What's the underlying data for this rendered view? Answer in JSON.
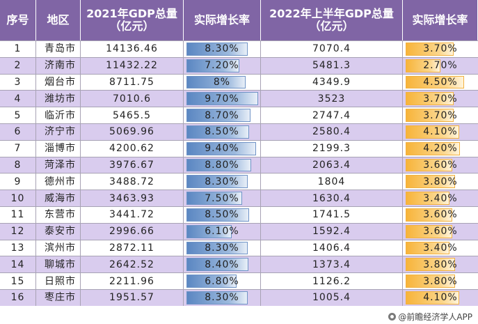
{
  "colors": {
    "header_bg": "#8065a5",
    "row_light": "#ffffff",
    "row_shade": "#d9ccee",
    "bar_blue": "#5b87c2",
    "bar_orange": "#f7b43a"
  },
  "headers": {
    "rank": "序号",
    "region": "地区",
    "gdp_2021": "2021年GDP总量\n（亿元）",
    "growth_2021": "实际增长率",
    "gdp_2022h1": "2022年上半年GDP总量\n（亿元）",
    "growth_2022h1": "实际增长率"
  },
  "rows": [
    {
      "rank": "1",
      "region": "青岛市",
      "gdp_2021": "14136.46",
      "growth_2021": "8.30%",
      "g21": 8.3,
      "gdp_2022h1": "7070.4",
      "growth_2022h1": "3.70%",
      "g22": 3.7
    },
    {
      "rank": "2",
      "region": "济南市",
      "gdp_2021": "11432.22",
      "growth_2021": "7.20%",
      "g21": 7.2,
      "gdp_2022h1": "5481.3",
      "growth_2022h1": "2.70%",
      "g22": 2.7
    },
    {
      "rank": "3",
      "region": "烟台市",
      "gdp_2021": "8711.75",
      "growth_2021": "8%",
      "g21": 8.0,
      "gdp_2022h1": "4349.9",
      "growth_2022h1": "4.50%",
      "g22": 4.5
    },
    {
      "rank": "4",
      "region": "潍坊市",
      "gdp_2021": "7010.6",
      "growth_2021": "9.70%",
      "g21": 9.7,
      "gdp_2022h1": "3523",
      "growth_2022h1": "3.70%",
      "g22": 3.7
    },
    {
      "rank": "5",
      "region": "临沂市",
      "gdp_2021": "5465.5",
      "growth_2021": "8.70%",
      "g21": 8.7,
      "gdp_2022h1": "2747.4",
      "growth_2022h1": "3.70%",
      "g22": 3.7
    },
    {
      "rank": "6",
      "region": "济宁市",
      "gdp_2021": "5069.96",
      "growth_2021": "8.50%",
      "g21": 8.5,
      "gdp_2022h1": "2580.4",
      "growth_2022h1": "4.10%",
      "g22": 4.1
    },
    {
      "rank": "7",
      "region": "淄博市",
      "gdp_2021": "4200.62",
      "growth_2021": "9.40%",
      "g21": 9.4,
      "gdp_2022h1": "2199.3",
      "growth_2022h1": "4.20%",
      "g22": 4.2
    },
    {
      "rank": "8",
      "region": "菏泽市",
      "gdp_2021": "3976.67",
      "growth_2021": "8.80%",
      "g21": 8.8,
      "gdp_2022h1": "2063.4",
      "growth_2022h1": "3.60%",
      "g22": 3.6
    },
    {
      "rank": "9",
      "region": "德州市",
      "gdp_2021": "3488.72",
      "growth_2021": "8.30%",
      "g21": 8.3,
      "gdp_2022h1": "1804",
      "growth_2022h1": "3.80%",
      "g22": 3.8
    },
    {
      "rank": "10",
      "region": "威海市",
      "gdp_2021": "3463.93",
      "growth_2021": "7.50%",
      "g21": 7.5,
      "gdp_2022h1": "1630.4",
      "growth_2022h1": "3.40%",
      "g22": 3.4
    },
    {
      "rank": "11",
      "region": "东营市",
      "gdp_2021": "3441.72",
      "growth_2021": "8.50%",
      "g21": 8.5,
      "gdp_2022h1": "1741.5",
      "growth_2022h1": "3.60%",
      "g22": 3.6
    },
    {
      "rank": "12",
      "region": "泰安市",
      "gdp_2021": "2996.66",
      "growth_2021": "6.10%",
      "g21": 6.1,
      "gdp_2022h1": "1592.4",
      "growth_2022h1": "3.60%",
      "g22": 3.6
    },
    {
      "rank": "13",
      "region": "滨州市",
      "gdp_2021": "2872.11",
      "growth_2021": "8.30%",
      "g21": 8.3,
      "gdp_2022h1": "1406.4",
      "growth_2022h1": "3.40%",
      "g22": 3.4
    },
    {
      "rank": "14",
      "region": "聊城市",
      "gdp_2021": "2642.52",
      "growth_2021": "8.40%",
      "g21": 8.4,
      "gdp_2022h1": "1373.4",
      "growth_2022h1": "3.80%",
      "g22": 3.8
    },
    {
      "rank": "15",
      "region": "日照市",
      "gdp_2021": "2211.96",
      "growth_2021": "6.80%",
      "g21": 6.8,
      "gdp_2022h1": "1126.2",
      "growth_2022h1": "3.80%",
      "g22": 3.8
    },
    {
      "rank": "16",
      "region": "枣庄市",
      "gdp_2021": "1951.57",
      "growth_2021": "8.30%",
      "g21": 8.3,
      "gdp_2022h1": "1005.4",
      "growth_2022h1": "4.10%",
      "g22": 4.1
    }
  ],
  "bar_scale": {
    "growth_2021_max": 9.7,
    "growth_2022h1_max": 4.5
  },
  "footer": {
    "source": "@前瞻经济学人APP",
    "icon": "qianzhan-logo-icon"
  }
}
